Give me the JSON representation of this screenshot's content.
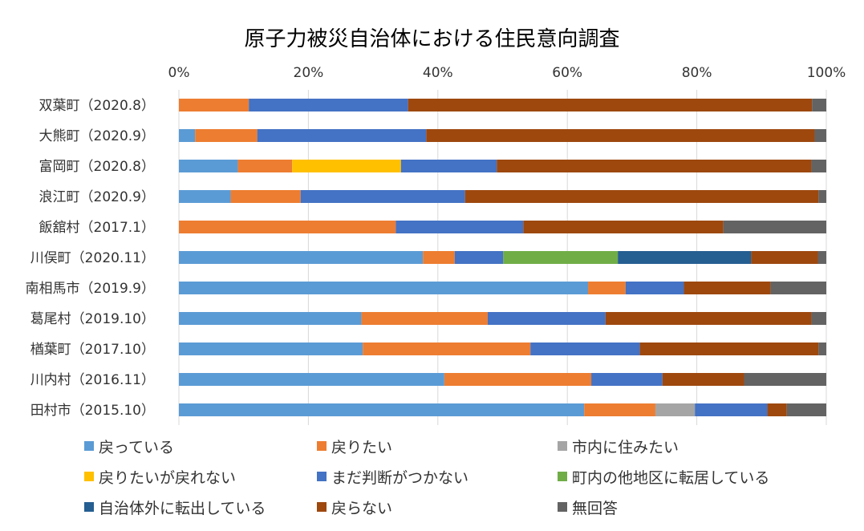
{
  "chart_data": {
    "type": "bar",
    "orientation": "horizontal",
    "stacked": "percent",
    "title": "原子力被災自治体における住民意向調査",
    "xlim": [
      0,
      100
    ],
    "xticks": [
      "0%",
      "20%",
      "40%",
      "60%",
      "80%",
      "100%"
    ],
    "categories": [
      "双葉町（2020.8）",
      "大熊町（2020.9）",
      "富岡町（2020.8）",
      "浪江町（2020.9）",
      "飯舘村（2017.1）",
      "川俣町（2020.11）",
      "南相馬市（2019.9）",
      "葛尾村（2019.10）",
      "楢葉町（2017.10）",
      "川内村（2016.11）",
      "田村市（2015.10）"
    ],
    "series": [
      {
        "name": "戻っている",
        "color": "#5B9BD5",
        "values": [
          0,
          2.5,
          9.1,
          8.0,
          0,
          37.7,
          63.2,
          28.2,
          28.4,
          41.0,
          62.6
        ]
      },
      {
        "name": "戻りたい",
        "color": "#ED7D31",
        "values": [
          10.8,
          9.6,
          8.4,
          10.8,
          33.5,
          4.9,
          5.8,
          19.5,
          25.9,
          22.7,
          11.0
        ]
      },
      {
        "name": "市内に住みたい",
        "color": "#A5A5A5",
        "values": [
          0,
          0,
          0,
          0,
          0,
          0,
          0,
          0,
          0,
          0,
          6.1
        ]
      },
      {
        "name": "戻りたいが戻れない",
        "color": "#FFC000",
        "values": [
          0,
          0,
          16.8,
          0,
          0,
          0,
          0,
          0,
          0,
          0,
          0
        ]
      },
      {
        "name": "まだ判断がつかない",
        "color": "#4472C4",
        "values": [
          24.6,
          26.1,
          14.8,
          25.4,
          19.7,
          7.5,
          9.0,
          18.2,
          16.9,
          11.0,
          11.2
        ]
      },
      {
        "name": "町内の他地区に転居している",
        "color": "#70AD47",
        "values": [
          0,
          0,
          0,
          0,
          0,
          17.7,
          0,
          0,
          0,
          0,
          0
        ]
      },
      {
        "name": "自治体外に転出している",
        "color": "#255E91",
        "values": [
          0,
          0,
          0,
          0,
          0,
          20.6,
          0,
          0,
          0,
          0,
          0
        ]
      },
      {
        "name": "戻らない",
        "color": "#9E480E",
        "values": [
          62.4,
          60.0,
          48.6,
          54.6,
          30.9,
          10.3,
          13.4,
          31.8,
          27.6,
          12.6,
          3.0
        ]
      },
      {
        "name": "無回答",
        "color": "#636363",
        "values": [
          2.2,
          1.8,
          2.3,
          1.2,
          15.9,
          1.3,
          8.6,
          2.3,
          1.2,
          12.7,
          6.1
        ]
      }
    ],
    "legend_position": "bottom",
    "grid": "vertical"
  }
}
